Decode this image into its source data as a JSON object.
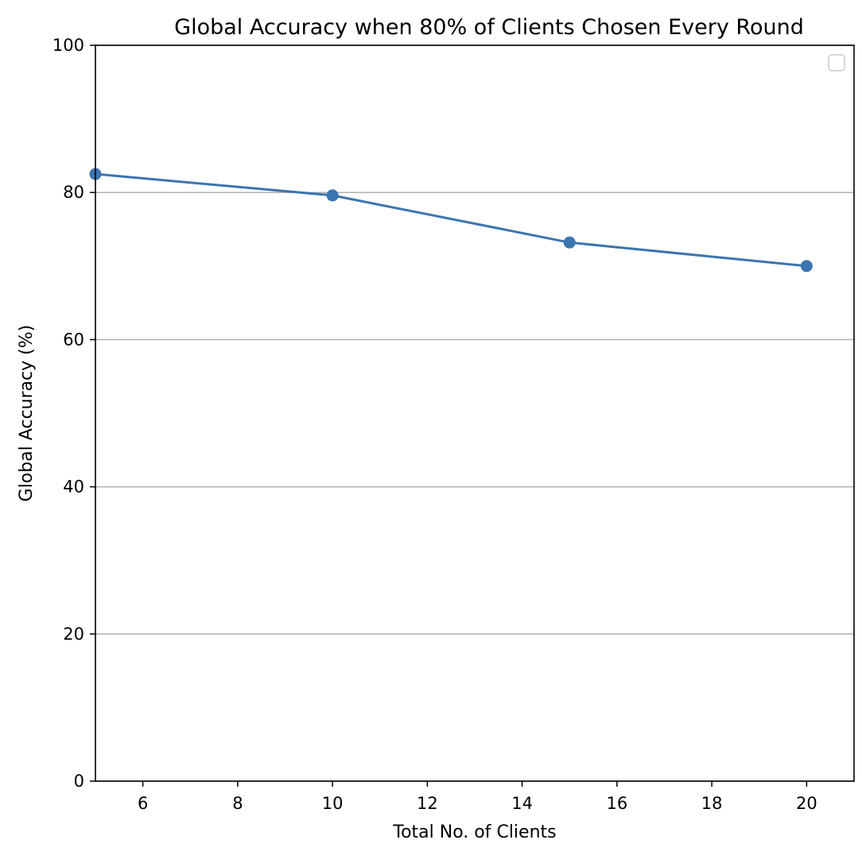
{
  "chart_data": {
    "type": "line",
    "title": "Global Accuracy when 80% of Clients Chosen Every Round",
    "xlabel": "Total No. of Clients",
    "ylabel": "Global Accuracy (%)",
    "xlim": [
      5,
      21
    ],
    "ylim": [
      0,
      100
    ],
    "xticks": [
      6,
      8,
      10,
      12,
      14,
      16,
      18,
      20
    ],
    "yticks": [
      0,
      20,
      40,
      60,
      80,
      100
    ],
    "grid": "horizontal",
    "legend": "top-right (empty)",
    "series": [
      {
        "x": [
          5,
          10,
          15,
          20
        ],
        "y": [
          82.5,
          79.6,
          73.2,
          70.0
        ],
        "color": "#3b75af"
      }
    ]
  }
}
